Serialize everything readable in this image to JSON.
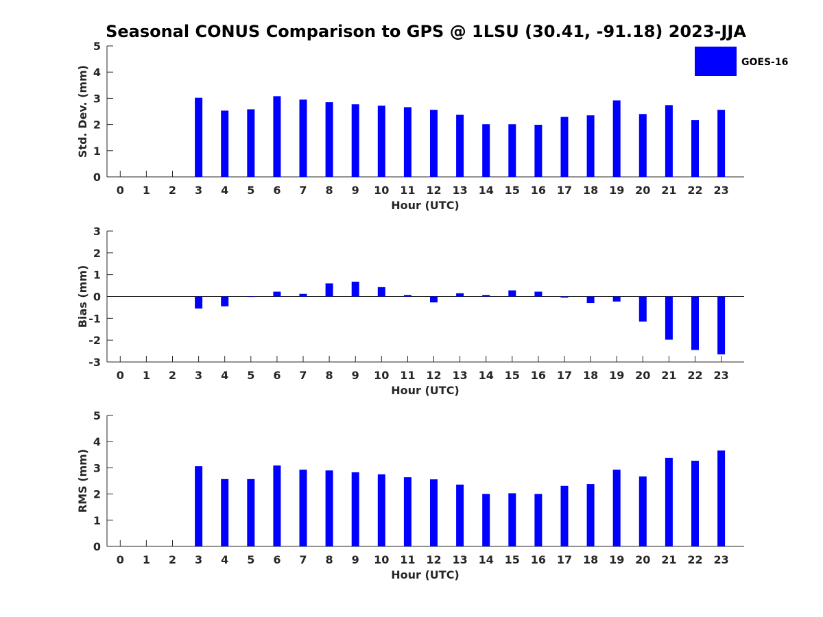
{
  "title": "Seasonal CONUS Comparison to GPS @ 1LSU (30.41, -91.18) 2023-JJA",
  "legend": {
    "label": "GOES-16",
    "color": "#0000ff",
    "placement": "top-right"
  },
  "chart_data": [
    {
      "type": "bar",
      "xlabel": "Hour (UTC)",
      "ylabel": "Std. Dev. (mm)",
      "ylim": [
        0,
        5
      ],
      "yticks": [
        0,
        1,
        2,
        3,
        4,
        5
      ],
      "categories": [
        "0",
        "1",
        "2",
        "3",
        "4",
        "5",
        "6",
        "7",
        "8",
        "9",
        "10",
        "11",
        "12",
        "13",
        "14",
        "15",
        "16",
        "17",
        "18",
        "19",
        "20",
        "21",
        "22",
        "23"
      ],
      "series": [
        {
          "name": "GOES-16",
          "values": [
            null,
            null,
            null,
            3.02,
            2.53,
            2.58,
            3.08,
            2.95,
            2.85,
            2.77,
            2.72,
            2.66,
            2.56,
            2.37,
            2.01,
            2.01,
            1.99,
            2.29,
            2.35,
            2.92,
            2.4,
            2.74,
            2.17,
            2.56
          ]
        }
      ]
    },
    {
      "type": "bar",
      "xlabel": "Hour (UTC)",
      "ylabel": "Bias (mm)",
      "ylim": [
        -3,
        3
      ],
      "yticks": [
        -3,
        -2,
        -1,
        0,
        1,
        2,
        3
      ],
      "categories": [
        "0",
        "1",
        "2",
        "3",
        "4",
        "5",
        "6",
        "7",
        "8",
        "9",
        "10",
        "11",
        "12",
        "13",
        "14",
        "15",
        "16",
        "17",
        "18",
        "19",
        "20",
        "21",
        "22",
        "23"
      ],
      "series": [
        {
          "name": "GOES-16",
          "values": [
            null,
            null,
            null,
            -0.55,
            -0.45,
            -0.02,
            0.22,
            0.12,
            0.6,
            0.68,
            0.43,
            0.07,
            -0.27,
            0.15,
            0.07,
            0.28,
            0.22,
            -0.05,
            -0.3,
            -0.23,
            -1.15,
            -1.98,
            -2.45,
            -2.65
          ]
        }
      ]
    },
    {
      "type": "bar",
      "xlabel": "Hour (UTC)",
      "ylabel": "RMS (mm)",
      "ylim": [
        0,
        5
      ],
      "yticks": [
        0,
        1,
        2,
        3,
        4,
        5
      ],
      "categories": [
        "0",
        "1",
        "2",
        "3",
        "4",
        "5",
        "6",
        "7",
        "8",
        "9",
        "10",
        "11",
        "12",
        "13",
        "14",
        "15",
        "16",
        "17",
        "18",
        "19",
        "20",
        "21",
        "22",
        "23"
      ],
      "series": [
        {
          "name": "GOES-16",
          "values": [
            null,
            null,
            null,
            3.06,
            2.57,
            2.57,
            3.09,
            2.93,
            2.9,
            2.83,
            2.75,
            2.64,
            2.56,
            2.36,
            2.0,
            2.03,
            2.0,
            2.31,
            2.38,
            2.93,
            2.67,
            3.38,
            3.27,
            3.66
          ]
        }
      ]
    }
  ]
}
